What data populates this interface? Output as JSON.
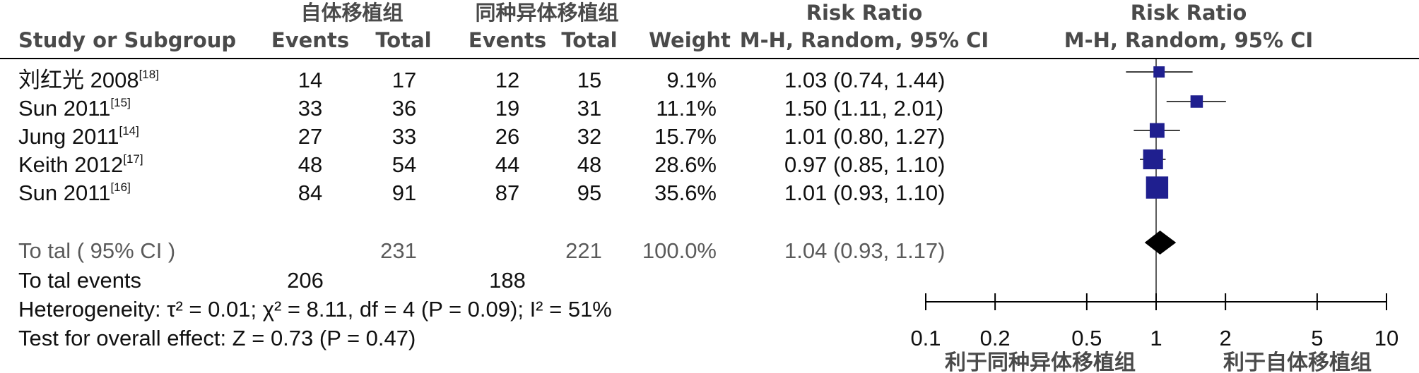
{
  "headers": {
    "group_auto": "自体移植组",
    "group_allo": "同种异体移植组",
    "study": "Study or Subgroup",
    "events_auto": "Events",
    "total_auto": "Total",
    "events_allo": "Events",
    "total_allo": "Total",
    "weight": "Weight",
    "rr_title": "Risk Ratio",
    "rr_method": "M-H, Random, 95% CI",
    "plot_title": "Risk Ratio",
    "plot_method": "M-H, Random, 95% CI"
  },
  "studies": [
    {
      "name": "刘红光 2008",
      "ref": "[18]",
      "events_auto": "14",
      "total_auto": "17",
      "events_allo": "12",
      "total_allo": "15",
      "weight": "9.1%",
      "ci_text": "1.03 (0.74, 1.44)"
    },
    {
      "name": "Sun 2011",
      "ref": "[15]",
      "events_auto": "33",
      "total_auto": "36",
      "events_allo": "19",
      "total_allo": "31",
      "weight": "11.1%",
      "ci_text": "1.50 (1.11, 2.01)"
    },
    {
      "name": "Jung 2011",
      "ref": "[14]",
      "events_auto": "27",
      "total_auto": "33",
      "events_allo": "26",
      "total_allo": "32",
      "weight": "15.7%",
      "ci_text": "1.01 (0.80, 1.27)"
    },
    {
      "name": "Keith 2012",
      "ref": "[17]",
      "events_auto": "48",
      "total_auto": "54",
      "events_allo": "44",
      "total_allo": "48",
      "weight": "28.6%",
      "ci_text": "0.97 (0.85, 1.10)"
    },
    {
      "name": "Sun 2011",
      "ref": "[16]",
      "events_auto": "84",
      "total_auto": "91",
      "events_allo": "87",
      "total_allo": "95",
      "weight": "35.6%",
      "ci_text": "1.01 (0.93, 1.10)"
    }
  ],
  "total": {
    "label": "To tal ( 95% CI )",
    "total_auto": "231",
    "total_allo": "221",
    "weight": "100.0%",
    "ci_text": "1.04 (0.93, 1.17)"
  },
  "total_events": {
    "label": "To tal events",
    "events_auto": "206",
    "events_allo": "188"
  },
  "heterogeneity": "Heterogeneity: τ² = 0.01; χ² = 8.11, df = 4 (P = 0.09); I² = 51%",
  "overall_effect": "Test for overall effect: Z = 0.73 (P = 0.47)",
  "favours_left": "利于同种异体移植组",
  "favours_right": "利于自体移植组",
  "colors": {
    "marker": "#1f1f8f",
    "diamond": "#000000",
    "header_text": "#4a4a4a"
  },
  "chart_data": {
    "type": "forest",
    "scale": "log",
    "xlim": [
      0.1,
      10
    ],
    "ticks": [
      0.1,
      0.2,
      0.5,
      1,
      2,
      5,
      10
    ],
    "tick_labels": [
      "0.1",
      "0.2",
      "0.5",
      "1",
      "2",
      "5",
      "10"
    ],
    "reference_line": 1,
    "series": [
      {
        "name": "刘红光 2008",
        "rr": 1.03,
        "lower": 0.74,
        "upper": 1.44,
        "weight": 9.1
      },
      {
        "name": "Sun 2011",
        "rr": 1.5,
        "lower": 1.11,
        "upper": 2.01,
        "weight": 11.1
      },
      {
        "name": "Jung 2011",
        "rr": 1.01,
        "lower": 0.8,
        "upper": 1.27,
        "weight": 15.7
      },
      {
        "name": "Keith 2012",
        "rr": 0.97,
        "lower": 0.85,
        "upper": 1.1,
        "weight": 28.6
      },
      {
        "name": "Sun 2011",
        "rr": 1.01,
        "lower": 0.93,
        "upper": 1.1,
        "weight": 35.6
      }
    ],
    "pooled": {
      "rr": 1.04,
      "lower": 0.93,
      "upper": 1.17
    }
  }
}
